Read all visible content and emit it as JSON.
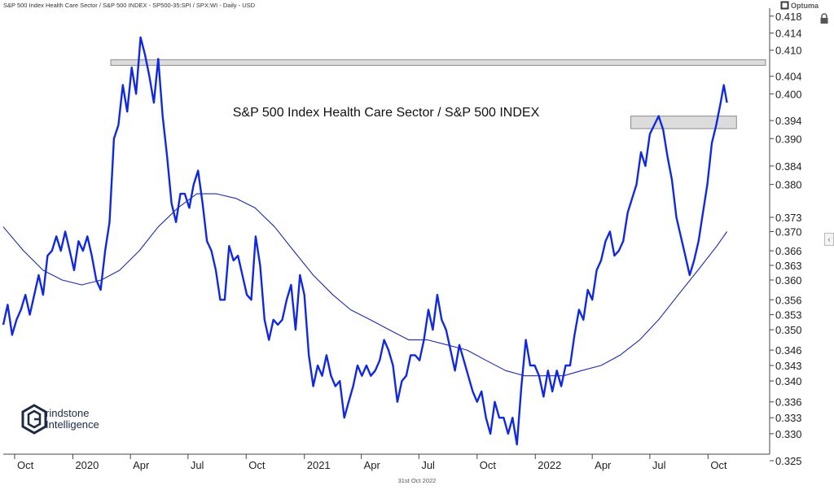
{
  "header": {
    "title": "S&P 500 Index Health Care Sector / S&P 500 INDEX - SP500-35:SPI / SPX:WI - Daily - USD"
  },
  "brand": {
    "name": "Optuma",
    "icon": "optuma-logo-icon"
  },
  "logo": {
    "line1": "rindstone",
    "line2": "Intelligence",
    "icon": "grindstone-hexagon-logo"
  },
  "footer": {
    "date": "31st Oct 2022"
  },
  "lock_icon": "lock-icon",
  "side_icon": "chevron-left-icon",
  "side_icon_glyph": "‹",
  "chart_data": {
    "type": "line",
    "title": "S&P 500 Index Health Care Sector / S&P 500 INDEX",
    "scale": "log",
    "ylim": [
      0.3265,
      0.4195
    ],
    "x_range": [
      "2019-09-13",
      "2022-12-31"
    ],
    "x_ticks": [
      {
        "date": "2019-10-01",
        "label": "Oct"
      },
      {
        "date": "2020-01-01",
        "label": "2020"
      },
      {
        "date": "2020-04-01",
        "label": "Apr"
      },
      {
        "date": "2020-07-01",
        "label": "Jul"
      },
      {
        "date": "2020-10-01",
        "label": "Oct"
      },
      {
        "date": "2021-01-01",
        "label": "2021"
      },
      {
        "date": "2021-04-01",
        "label": "Apr"
      },
      {
        "date": "2021-07-01",
        "label": "Jul"
      },
      {
        "date": "2021-10-01",
        "label": "Oct"
      },
      {
        "date": "2022-01-01",
        "label": "2022"
      },
      {
        "date": "2022-04-01",
        "label": "Apr"
      },
      {
        "date": "2022-07-01",
        "label": "Jul"
      },
      {
        "date": "2022-10-01",
        "label": "Oct"
      }
    ],
    "y_ticks": [
      0.418,
      0.414,
      0.41,
      0.404,
      0.4,
      0.394,
      0.39,
      0.384,
      0.38,
      0.373,
      0.37,
      0.366,
      0.363,
      0.36,
      0.356,
      0.353,
      0.35,
      0.346,
      0.343,
      0.34,
      0.336,
      0.333,
      0.33,
      0.325
    ],
    "y_tick_labels": [
      "0.418",
      "0.414",
      "0.410",
      "0.404",
      "0.400",
      "0.394",
      "0.390",
      "0.384",
      "0.380",
      "0.373",
      "0.370",
      "0.366",
      "0.363",
      "0.360",
      "0.356",
      "0.353",
      "0.350",
      "0.346",
      "0.343",
      "0.340",
      "0.336",
      "0.333",
      "0.330",
      "0.325"
    ],
    "resistance_zones": [
      {
        "name": "upper-resistance",
        "start": "2020-03-01",
        "end": "2022-12-31",
        "low": 0.4065,
        "high": 0.4078
      },
      {
        "name": "lower-resistance",
        "start": "2022-06-01",
        "end": "2022-11-15",
        "low": 0.3922,
        "high": 0.395
      }
    ],
    "series": [
      {
        "name": "Health Care / S&P 500 ratio",
        "color": "#1028e0",
        "points": [
          [
            "2019-09-13",
            0.351
          ],
          [
            "2019-09-20",
            0.355
          ],
          [
            "2019-09-27",
            0.349
          ],
          [
            "2019-10-04",
            0.352
          ],
          [
            "2019-10-11",
            0.354
          ],
          [
            "2019-10-18",
            0.357
          ],
          [
            "2019-10-25",
            0.353
          ],
          [
            "2019-11-01",
            0.357
          ],
          [
            "2019-11-08",
            0.361
          ],
          [
            "2019-11-15",
            0.357
          ],
          [
            "2019-11-22",
            0.365
          ],
          [
            "2019-11-29",
            0.366
          ],
          [
            "2019-12-06",
            0.369
          ],
          [
            "2019-12-13",
            0.366
          ],
          [
            "2019-12-20",
            0.37
          ],
          [
            "2019-12-27",
            0.366
          ],
          [
            "2020-01-03",
            0.362
          ],
          [
            "2020-01-10",
            0.368
          ],
          [
            "2020-01-17",
            0.366
          ],
          [
            "2020-01-24",
            0.369
          ],
          [
            "2020-01-31",
            0.365
          ],
          [
            "2020-02-07",
            0.36
          ],
          [
            "2020-02-14",
            0.358
          ],
          [
            "2020-02-21",
            0.366
          ],
          [
            "2020-02-28",
            0.372
          ],
          [
            "2020-03-06",
            0.39
          ],
          [
            "2020-03-13",
            0.393
          ],
          [
            "2020-03-20",
            0.402
          ],
          [
            "2020-03-27",
            0.396
          ],
          [
            "2020-04-03",
            0.406
          ],
          [
            "2020-04-10",
            0.4
          ],
          [
            "2020-04-17",
            0.413
          ],
          [
            "2020-04-24",
            0.409
          ],
          [
            "2020-05-01",
            0.404
          ],
          [
            "2020-05-08",
            0.398
          ],
          [
            "2020-05-15",
            0.408
          ],
          [
            "2020-05-22",
            0.395
          ],
          [
            "2020-05-29",
            0.386
          ],
          [
            "2020-06-05",
            0.376
          ],
          [
            "2020-06-12",
            0.372
          ],
          [
            "2020-06-19",
            0.378
          ],
          [
            "2020-06-26",
            0.378
          ],
          [
            "2020-07-03",
            0.375
          ],
          [
            "2020-07-10",
            0.38
          ],
          [
            "2020-07-17",
            0.383
          ],
          [
            "2020-07-24",
            0.376
          ],
          [
            "2020-07-31",
            0.368
          ],
          [
            "2020-08-07",
            0.366
          ],
          [
            "2020-08-14",
            0.362
          ],
          [
            "2020-08-21",
            0.356
          ],
          [
            "2020-08-28",
            0.356
          ],
          [
            "2020-09-04",
            0.367
          ],
          [
            "2020-09-11",
            0.364
          ],
          [
            "2020-09-18",
            0.365
          ],
          [
            "2020-09-25",
            0.361
          ],
          [
            "2020-10-02",
            0.357
          ],
          [
            "2020-10-09",
            0.356
          ],
          [
            "2020-10-16",
            0.369
          ],
          [
            "2020-10-23",
            0.363
          ],
          [
            "2020-10-30",
            0.352
          ],
          [
            "2020-11-06",
            0.348
          ],
          [
            "2020-11-13",
            0.352
          ],
          [
            "2020-11-20",
            0.351
          ],
          [
            "2020-11-27",
            0.352
          ],
          [
            "2020-12-04",
            0.356
          ],
          [
            "2020-12-11",
            0.359
          ],
          [
            "2020-12-18",
            0.35
          ],
          [
            "2020-12-25",
            0.361
          ],
          [
            "2021-01-01",
            0.357
          ],
          [
            "2021-01-08",
            0.345
          ],
          [
            "2021-01-15",
            0.339
          ],
          [
            "2021-01-22",
            0.343
          ],
          [
            "2021-01-29",
            0.341
          ],
          [
            "2021-02-05",
            0.345
          ],
          [
            "2021-02-12",
            0.341
          ],
          [
            "2021-02-19",
            0.339
          ],
          [
            "2021-02-26",
            0.34
          ],
          [
            "2021-03-05",
            0.333
          ],
          [
            "2021-03-12",
            0.336
          ],
          [
            "2021-03-19",
            0.339
          ],
          [
            "2021-03-26",
            0.343
          ],
          [
            "2021-04-02",
            0.341
          ],
          [
            "2021-04-09",
            0.343
          ],
          [
            "2021-04-16",
            0.341
          ],
          [
            "2021-04-23",
            0.342
          ],
          [
            "2021-04-30",
            0.344
          ],
          [
            "2021-05-07",
            0.348
          ],
          [
            "2021-05-14",
            0.346
          ],
          [
            "2021-05-21",
            0.343
          ],
          [
            "2021-05-28",
            0.336
          ],
          [
            "2021-06-04",
            0.34
          ],
          [
            "2021-06-11",
            0.341
          ],
          [
            "2021-06-18",
            0.345
          ],
          [
            "2021-06-25",
            0.345
          ],
          [
            "2021-07-02",
            0.344
          ],
          [
            "2021-07-09",
            0.348
          ],
          [
            "2021-07-16",
            0.354
          ],
          [
            "2021-07-23",
            0.35
          ],
          [
            "2021-07-30",
            0.357
          ],
          [
            "2021-08-06",
            0.352
          ],
          [
            "2021-08-13",
            0.35
          ],
          [
            "2021-08-20",
            0.346
          ],
          [
            "2021-08-27",
            0.342
          ],
          [
            "2021-09-03",
            0.347
          ],
          [
            "2021-09-10",
            0.344
          ],
          [
            "2021-09-17",
            0.341
          ],
          [
            "2021-09-24",
            0.338
          ],
          [
            "2021-10-01",
            0.336
          ],
          [
            "2021-10-08",
            0.338
          ],
          [
            "2021-10-15",
            0.333
          ],
          [
            "2021-10-22",
            0.33
          ],
          [
            "2021-10-29",
            0.336
          ],
          [
            "2021-11-05",
            0.333
          ],
          [
            "2021-11-12",
            0.333
          ],
          [
            "2021-11-19",
            0.33
          ],
          [
            "2021-11-26",
            0.333
          ],
          [
            "2021-12-03",
            0.328
          ],
          [
            "2021-12-10",
            0.339
          ],
          [
            "2021-12-17",
            0.348
          ],
          [
            "2021-12-24",
            0.343
          ],
          [
            "2021-12-31",
            0.343
          ],
          [
            "2022-01-07",
            0.341
          ],
          [
            "2022-01-14",
            0.337
          ],
          [
            "2022-01-21",
            0.342
          ],
          [
            "2022-01-28",
            0.338
          ],
          [
            "2022-02-04",
            0.342
          ],
          [
            "2022-02-11",
            0.339
          ],
          [
            "2022-02-18",
            0.343
          ],
          [
            "2022-02-25",
            0.343
          ],
          [
            "2022-03-04",
            0.349
          ],
          [
            "2022-03-11",
            0.354
          ],
          [
            "2022-03-18",
            0.352
          ],
          [
            "2022-03-25",
            0.358
          ],
          [
            "2022-04-01",
            0.356
          ],
          [
            "2022-04-08",
            0.362
          ],
          [
            "2022-04-15",
            0.364
          ],
          [
            "2022-04-22",
            0.368
          ],
          [
            "2022-04-29",
            0.37
          ],
          [
            "2022-05-06",
            0.365
          ],
          [
            "2022-05-13",
            0.366
          ],
          [
            "2022-05-20",
            0.368
          ],
          [
            "2022-05-27",
            0.374
          ],
          [
            "2022-06-03",
            0.377
          ],
          [
            "2022-06-10",
            0.38
          ],
          [
            "2022-06-17",
            0.387
          ],
          [
            "2022-06-24",
            0.384
          ],
          [
            "2022-07-01",
            0.391
          ],
          [
            "2022-07-08",
            0.393
          ],
          [
            "2022-07-15",
            0.395
          ],
          [
            "2022-07-22",
            0.392
          ],
          [
            "2022-07-29",
            0.386
          ],
          [
            "2022-08-05",
            0.381
          ],
          [
            "2022-08-12",
            0.373
          ],
          [
            "2022-08-19",
            0.369
          ],
          [
            "2022-08-26",
            0.365
          ],
          [
            "2022-09-02",
            0.361
          ],
          [
            "2022-09-09",
            0.364
          ],
          [
            "2022-09-16",
            0.368
          ],
          [
            "2022-09-23",
            0.374
          ],
          [
            "2022-09-30",
            0.38
          ],
          [
            "2022-10-07",
            0.389
          ],
          [
            "2022-10-14",
            0.393
          ],
          [
            "2022-10-21",
            0.398
          ],
          [
            "2022-10-26",
            0.402
          ],
          [
            "2022-10-31",
            0.398
          ]
        ]
      },
      {
        "name": "moving average",
        "color": "#1c2aa8",
        "points": [
          [
            "2019-09-13",
            0.371
          ],
          [
            "2019-10-15",
            0.366
          ],
          [
            "2019-11-15",
            0.362
          ],
          [
            "2019-12-15",
            0.36
          ],
          [
            "2020-01-15",
            0.359
          ],
          [
            "2020-02-15",
            0.36
          ],
          [
            "2020-03-15",
            0.362
          ],
          [
            "2020-04-15",
            0.366
          ],
          [
            "2020-05-15",
            0.371
          ],
          [
            "2020-06-15",
            0.375
          ],
          [
            "2020-07-15",
            0.378
          ],
          [
            "2020-08-15",
            0.378
          ],
          [
            "2020-09-15",
            0.377
          ],
          [
            "2020-10-15",
            0.375
          ],
          [
            "2020-11-15",
            0.371
          ],
          [
            "2020-12-15",
            0.366
          ],
          [
            "2021-01-15",
            0.361
          ],
          [
            "2021-02-15",
            0.357
          ],
          [
            "2021-03-15",
            0.354
          ],
          [
            "2021-04-15",
            0.352
          ],
          [
            "2021-05-15",
            0.35
          ],
          [
            "2021-06-15",
            0.348
          ],
          [
            "2021-07-15",
            0.348
          ],
          [
            "2021-08-15",
            0.347
          ],
          [
            "2021-09-15",
            0.346
          ],
          [
            "2021-10-15",
            0.344
          ],
          [
            "2021-11-15",
            0.342
          ],
          [
            "2021-12-15",
            0.341
          ],
          [
            "2022-01-15",
            0.341
          ],
          [
            "2022-02-15",
            0.341
          ],
          [
            "2022-03-15",
            0.342
          ],
          [
            "2022-04-15",
            0.343
          ],
          [
            "2022-05-15",
            0.345
          ],
          [
            "2022-06-15",
            0.348
          ],
          [
            "2022-07-15",
            0.352
          ],
          [
            "2022-08-15",
            0.357
          ],
          [
            "2022-09-15",
            0.362
          ],
          [
            "2022-10-15",
            0.367
          ],
          [
            "2022-10-31",
            0.37
          ]
        ]
      }
    ]
  }
}
